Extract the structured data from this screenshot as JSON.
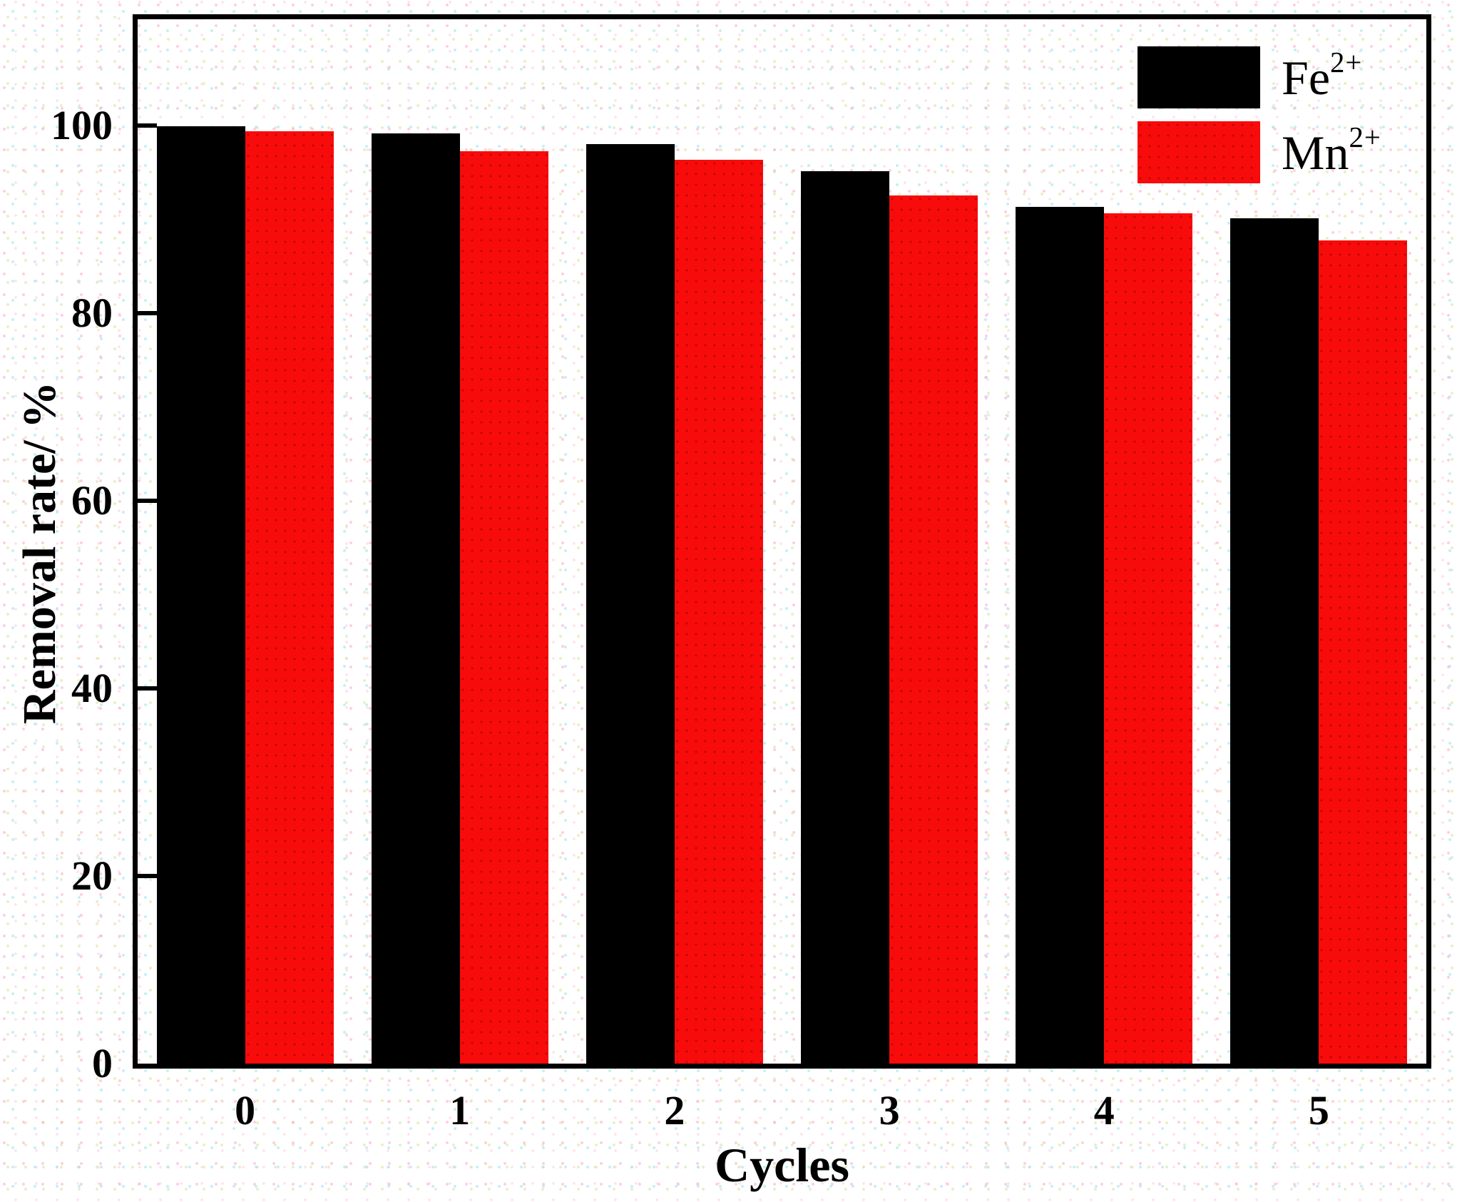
{
  "chart_data": {
    "type": "bar",
    "categories": [
      "0",
      "1",
      "2",
      "3",
      "4",
      "5"
    ],
    "series": [
      {
        "name": "Fe2+",
        "label_base": "Fe",
        "label_sup": "2+",
        "color": "#000000",
        "values": [
          99.9,
          99.1,
          98.0,
          95.1,
          91.3,
          90.1
        ]
      },
      {
        "name": "Mn2+",
        "label_base": "Mn",
        "label_sup": "2+",
        "color": "#f80b0b",
        "values": [
          99.4,
          97.2,
          96.3,
          92.5,
          90.6,
          87.7
        ]
      }
    ],
    "title": "",
    "xlabel": "Cycles",
    "ylabel": "Removal rate/ %",
    "ylim": [
      0,
      111.3
    ],
    "yticks": [
      0,
      20,
      40,
      60,
      80,
      100
    ],
    "grid": false,
    "legend_position": "top-right-inside"
  }
}
